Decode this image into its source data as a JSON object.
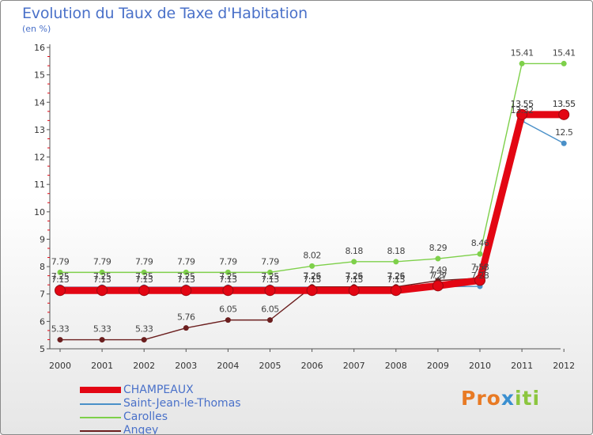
{
  "chart_data": {
    "type": "line",
    "title": "Evolution du Taux de Taxe d'Habitation",
    "ylabel": "(en %)",
    "xlabel": "",
    "categories": [
      "2000",
      "2001",
      "2002",
      "2003",
      "2004",
      "2005",
      "2006",
      "2007",
      "2008",
      "2009",
      "2010",
      "2011",
      "2012"
    ],
    "ylim": [
      5,
      16
    ],
    "yticks": [
      "5",
      "6",
      "7",
      "8",
      "9",
      "10",
      "11",
      "12",
      "13",
      "14",
      "15",
      "16"
    ],
    "series": [
      {
        "name": "Saint-Jean-le-Thomas",
        "color": "#4a90c8",
        "values": [
          7.25,
          7.25,
          7.25,
          7.25,
          7.25,
          7.25,
          7.25,
          7.25,
          7.25,
          7.27,
          7.28,
          13.32,
          12.5
        ],
        "labels": [
          "7.25",
          "7.25",
          "7.25",
          "7.25",
          "7.25",
          "7.25",
          "7.25",
          "7.25",
          "7.25",
          "7.27",
          "7.28",
          "13.32",
          "12.5"
        ]
      },
      {
        "name": "Carolles",
        "color": "#7ed04a",
        "values": [
          7.79,
          7.79,
          7.79,
          7.79,
          7.79,
          7.79,
          8.02,
          8.18,
          8.18,
          8.29,
          8.46,
          15.41,
          15.41
        ],
        "labels": [
          "7.79",
          "7.79",
          "7.79",
          "7.79",
          "7.79",
          "7.79",
          "8.02",
          "8.18",
          "8.18",
          "8.29",
          "8.46",
          "15.41",
          "15.41"
        ]
      },
      {
        "name": "Angey",
        "color": "#6b1e1e",
        "values": [
          5.33,
          5.33,
          5.33,
          5.76,
          6.05,
          6.05,
          7.26,
          7.26,
          7.26,
          7.49,
          7.58,
          13.55,
          13.55
        ],
        "labels": [
          "5.33",
          "5.33",
          "5.33",
          "5.76",
          "6.05",
          "6.05",
          "7.26",
          "7.26",
          "7.26",
          "7.49",
          "7.58",
          "13.55",
          "13.55"
        ]
      },
      {
        "name": "CHAMPEAUX",
        "color": "#e30613",
        "values": [
          7.13,
          7.13,
          7.13,
          7.13,
          7.13,
          7.13,
          7.13,
          7.13,
          7.13,
          7.3,
          7.5,
          13.55,
          13.55
        ],
        "labels": [
          "7.13",
          "7.13",
          "7.13",
          "7.13",
          "7.13",
          "7.13",
          "7.13",
          "7.13",
          "7.13",
          "7.3",
          "7.5",
          "13.55",
          "13.55"
        ]
      }
    ],
    "legend_order": [
      "CHAMPEAUX",
      "Saint-Jean-le-Thomas",
      "Carolles",
      "Angey"
    ],
    "grid": false
  },
  "legend": [
    {
      "label": "CHAMPEAUX",
      "color": "#e30613"
    },
    {
      "label": "Saint-Jean-le-Thomas",
      "color": "#4a90c8"
    },
    {
      "label": "Carolles",
      "color": "#7ed04a"
    },
    {
      "label": "Angey",
      "color": "#6b1e1e"
    }
  ],
  "logo": {
    "part1": "Pro",
    "part2": "x",
    "part3": "iti"
  }
}
